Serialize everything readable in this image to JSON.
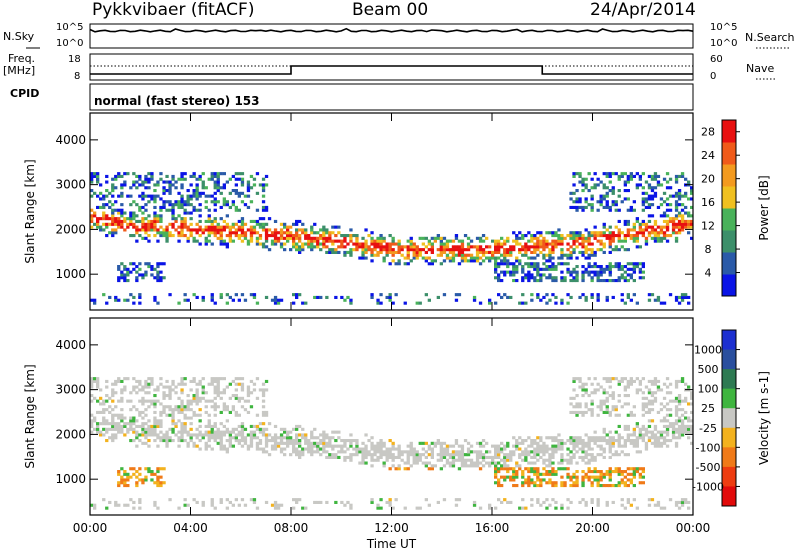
{
  "header": {
    "title": "Pykkvibaer (fitACF)",
    "beam": "Beam 00",
    "date": "24/Apr/2014"
  },
  "panels": {
    "nsky_label": "N.Sky",
    "nsearch_label": "N.Search",
    "freq_label_1": "Freq.",
    "freq_label_2": "[MHz]",
    "nave_label": "Nave",
    "cpid_label": "CPID",
    "cpid_text": "normal (fast stereo) 153",
    "noise_ticks_left": [
      "10^5",
      "10^0"
    ],
    "noise_ticks_right": [
      "10^5",
      "10^0"
    ],
    "freq_ticks": [
      "18",
      "8"
    ],
    "nave_ticks": [
      "60",
      "0"
    ]
  },
  "colors": {
    "power_scale": [
      "#0a14e6",
      "#2a5aa8",
      "#3c8f6a",
      "#49b25a",
      "#f0c020",
      "#f39a1f",
      "#f05a1a",
      "#e81010"
    ],
    "velocity_scale": [
      "#1c2fd0",
      "#2a4f9e",
      "#2e7a52",
      "#3fb53f",
      "#c8c8c4",
      "#f3b21e",
      "#f07a18",
      "#ee3c10",
      "#e20a0a"
    ]
  },
  "chart_data": [
    {
      "type": "heatmap",
      "name": "power",
      "ylabel": "Slant Range [km]",
      "x_ticks": [
        "00:00",
        "04:00",
        "08:00",
        "12:00",
        "16:00",
        "20:00",
        "00:00"
      ],
      "y_ticks": [
        1000,
        2000,
        3000,
        4000
      ],
      "ylim": [
        200,
        4600
      ],
      "xlim": [
        0,
        24
      ],
      "colorbar_label": "Power [dB]",
      "colorbar_ticks": [
        "4",
        "8",
        "12",
        "16",
        "20",
        "24",
        "28"
      ],
      "colorbar_range": [
        0,
        30
      ]
    },
    {
      "type": "heatmap",
      "name": "velocity",
      "ylabel": "Slant Range [km]",
      "xlabel": "Time UT",
      "x_ticks": [
        "00:00",
        "04:00",
        "08:00",
        "12:00",
        "16:00",
        "20:00",
        "00:00"
      ],
      "y_ticks": [
        1000,
        2000,
        3000,
        4000
      ],
      "ylim": [
        200,
        4600
      ],
      "xlim": [
        0,
        24
      ],
      "colorbar_label": "Velocity [m s-1]",
      "colorbar_ticks": [
        "1000",
        "500",
        "100",
        "25",
        "-25",
        "-100",
        "-500",
        "-1000"
      ],
      "colorbar_range": [
        -1000,
        1000
      ]
    }
  ]
}
